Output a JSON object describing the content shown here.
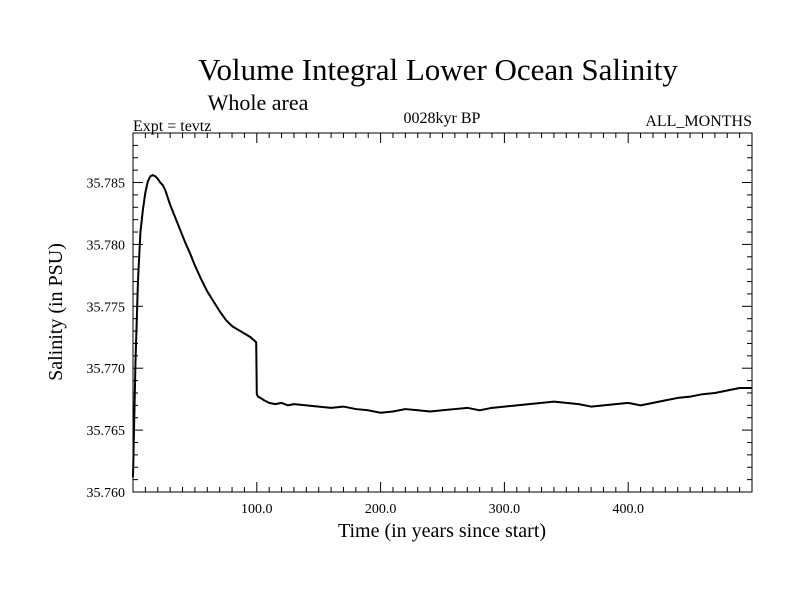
{
  "chart_data": {
    "type": "line",
    "title": "Volume Integral Lower Ocean Salinity",
    "subtitle": "Whole area",
    "experiment_label": "Expt = tevtz",
    "period_label": "0028kyr BP",
    "months_label": "ALL_MONTHS",
    "xlabel": "Time (in years since start)",
    "ylabel": "Salinity (in PSU)",
    "xlim": [
      0,
      500
    ],
    "ylim": [
      35.76,
      35.789
    ],
    "x_ticks": [
      100,
      200,
      300,
      400
    ],
    "x_tick_labels": [
      "100.0",
      "200.0",
      "300.0",
      "400.0"
    ],
    "y_ticks": [
      35.76,
      35.765,
      35.77,
      35.775,
      35.78,
      35.785
    ],
    "y_tick_labels": [
      "35.760",
      "35.765",
      "35.770",
      "35.775",
      "35.780",
      "35.785"
    ],
    "grid": false,
    "series": [
      {
        "name": "Salinity",
        "x": [
          0,
          2,
          4,
          6,
          8,
          10,
          12,
          14,
          16,
          18,
          20,
          22,
          24,
          26,
          28,
          30,
          34,
          38,
          42,
          46,
          50,
          55,
          60,
          65,
          70,
          75,
          80,
          85,
          90,
          95,
          99.5,
          100,
          101,
          103,
          106,
          110,
          115,
          120,
          125,
          130,
          140,
          150,
          160,
          170,
          180,
          190,
          200,
          210,
          220,
          230,
          240,
          250,
          260,
          270,
          280,
          290,
          300,
          310,
          320,
          330,
          340,
          350,
          360,
          370,
          380,
          390,
          400,
          410,
          420,
          430,
          440,
          450,
          460,
          470,
          480,
          490,
          500
        ],
        "values": [
          35.7612,
          35.7705,
          35.777,
          35.781,
          35.7828,
          35.7842,
          35.7851,
          35.7855,
          35.7856,
          35.7855,
          35.7853,
          35.785,
          35.7848,
          35.7844,
          35.7838,
          35.7832,
          35.7822,
          35.7812,
          35.7802,
          35.7793,
          35.7783,
          35.7772,
          35.7762,
          35.7754,
          35.7746,
          35.7739,
          35.7734,
          35.7731,
          35.7728,
          35.7725,
          35.7721,
          35.7679,
          35.7677,
          35.7676,
          35.7674,
          35.7672,
          35.7671,
          35.7672,
          35.767,
          35.7671,
          35.767,
          35.7669,
          35.7668,
          35.7669,
          35.7667,
          35.7666,
          35.7664,
          35.7665,
          35.7667,
          35.7666,
          35.7665,
          35.7666,
          35.7667,
          35.7668,
          35.7666,
          35.7668,
          35.7669,
          35.767,
          35.7671,
          35.7672,
          35.7673,
          35.7672,
          35.7671,
          35.7669,
          35.767,
          35.7671,
          35.7672,
          35.767,
          35.7672,
          35.7674,
          35.7676,
          35.7677,
          35.7679,
          35.768,
          35.7682,
          35.7684,
          35.7684
        ]
      }
    ]
  }
}
